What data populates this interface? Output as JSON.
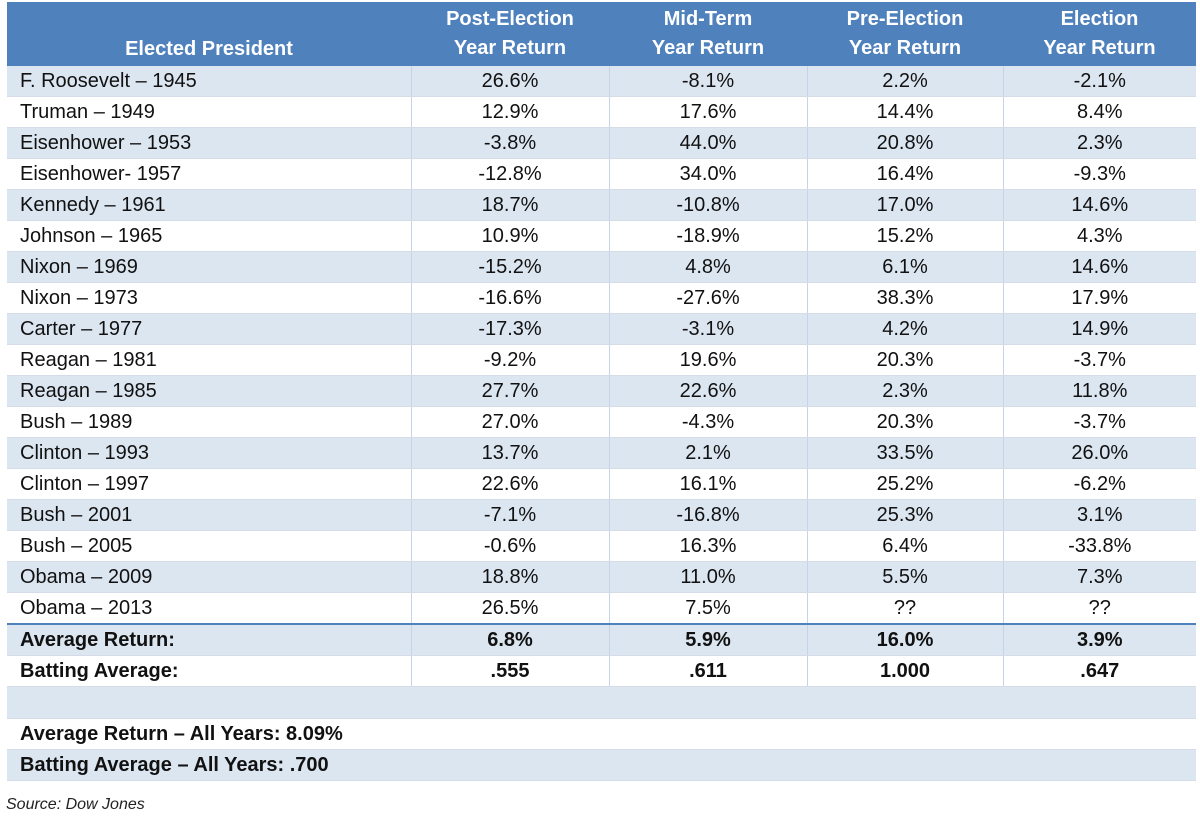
{
  "headers": [
    {
      "line1": "",
      "line2": "Elected President"
    },
    {
      "line1": "Post-Election",
      "line2": "Year Return"
    },
    {
      "line1": "Mid-Term",
      "line2": "Year Return"
    },
    {
      "line1": "Pre-Election",
      "line2": "Year Return"
    },
    {
      "line1": "Election",
      "line2": "Year Return"
    }
  ],
  "rows": [
    [
      "F. Roosevelt – 1945",
      "26.6%",
      "-8.1%",
      "2.2%",
      "-2.1%"
    ],
    [
      "Truman – 1949",
      "12.9%",
      "17.6%",
      "14.4%",
      "8.4%"
    ],
    [
      "Eisenhower – 1953",
      "-3.8%",
      "44.0%",
      "20.8%",
      "2.3%"
    ],
    [
      "Eisenhower- 1957",
      "-12.8%",
      "34.0%",
      "16.4%",
      "-9.3%"
    ],
    [
      "Kennedy – 1961",
      "18.7%",
      "-10.8%",
      "17.0%",
      "14.6%"
    ],
    [
      "Johnson – 1965",
      "10.9%",
      "-18.9%",
      "15.2%",
      "4.3%"
    ],
    [
      "Nixon – 1969",
      "-15.2%",
      "4.8%",
      "6.1%",
      "14.6%"
    ],
    [
      "Nixon – 1973",
      "-16.6%",
      "-27.6%",
      "38.3%",
      "17.9%"
    ],
    [
      "Carter – 1977",
      "-17.3%",
      "-3.1%",
      "4.2%",
      "14.9%"
    ],
    [
      "Reagan – 1981",
      "-9.2%",
      "19.6%",
      "20.3%",
      "-3.7%"
    ],
    [
      "Reagan – 1985",
      "27.7%",
      "22.6%",
      "2.3%",
      "11.8%"
    ],
    [
      "Bush – 1989",
      "27.0%",
      "-4.3%",
      "20.3%",
      "-3.7%"
    ],
    [
      "Clinton – 1993",
      "13.7%",
      "2.1%",
      "33.5%",
      "26.0%"
    ],
    [
      "Clinton – 1997",
      "22.6%",
      "16.1%",
      "25.2%",
      "-6.2%"
    ],
    [
      "Bush – 2001",
      "-7.1%",
      "-16.8%",
      "25.3%",
      "3.1%"
    ],
    [
      "Bush – 2005",
      "-0.6%",
      "16.3%",
      "6.4%",
      "-33.8%"
    ],
    [
      "Obama – 2009",
      "18.8%",
      "11.0%",
      "5.5%",
      "7.3%"
    ],
    [
      "Obama – 2013",
      "26.5%",
      "7.5%",
      "??",
      "??"
    ]
  ],
  "summary": {
    "average_return": {
      "label": "Average Return:",
      "values": [
        "6.8%",
        "5.9%",
        "16.0%",
        "3.9%"
      ]
    },
    "batting_average": {
      "label": "Batting Average:",
      "values": [
        ".555",
        ".611",
        "1.000",
        ".647"
      ]
    }
  },
  "footer": {
    "avg_all_years": "Average Return – All Years: 8.09%",
    "batting_all_years": "Batting Average – All Years: .700"
  },
  "source": "Source: Dow Jones",
  "colors": {
    "header": "#4f81bd",
    "band": "#dce6f1"
  }
}
